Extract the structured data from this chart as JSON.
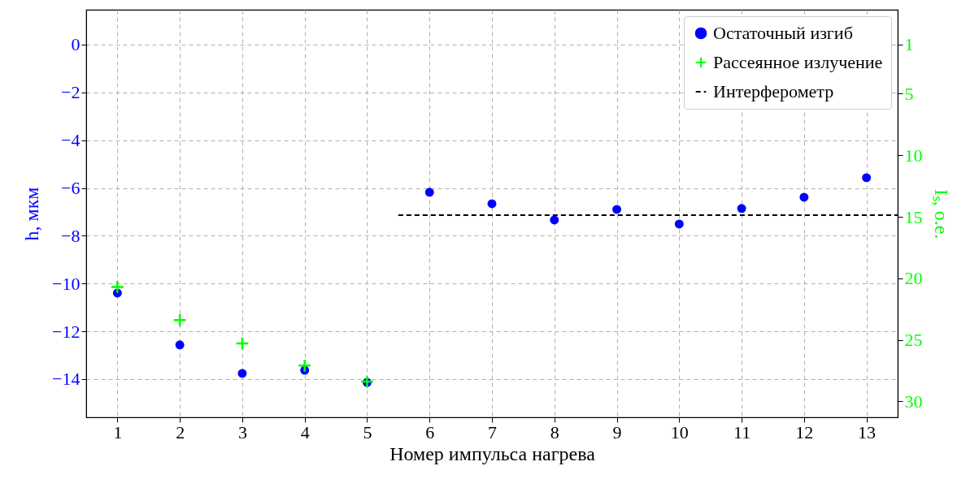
{
  "chart_data": {
    "type": "scatter",
    "xlabel": "Номер импульса нагрева",
    "ylabel": "h, мкм",
    "y2label": "Iₛ, о.е.",
    "xlim": [
      0.5,
      13.5
    ],
    "xticks": [
      1,
      2,
      3,
      4,
      5,
      6,
      7,
      8,
      9,
      10,
      11,
      12,
      13
    ],
    "ylim": [
      -15.6,
      1.46
    ],
    "yticks": [
      -14,
      -12,
      -10,
      -8,
      -6,
      -4,
      -2,
      0
    ],
    "y2lim": [
      31.3,
      -1.83
    ],
    "y2ticks": [
      1,
      5,
      10,
      15,
      20,
      25,
      30
    ],
    "grid": true,
    "legend": "top right",
    "series": [
      {
        "name": "Остаточный изгиб",
        "color": "#0000ff",
        "marker": "circle",
        "x": [
          1,
          2,
          3,
          4,
          5,
          6,
          7,
          8,
          9,
          10,
          11,
          12,
          13
        ],
        "values": [
          -10.4,
          -12.57,
          -13.76,
          -13.63,
          -14.14,
          -6.18,
          -6.66,
          -7.34,
          -6.9,
          -7.51,
          -6.86,
          -6.39,
          -5.57
        ]
      },
      {
        "name": "Рассеянное излучение",
        "color": "#00ff00",
        "marker": "cross",
        "axis": "y2",
        "x": [
          1,
          2,
          3,
          4,
          5
        ],
        "values": [
          20.7,
          23.4,
          25.3,
          27.1,
          28.4
        ]
      },
      {
        "name": "Интерферометр",
        "type": "line",
        "color": "#000000",
        "line_style": "dashed",
        "x": [
          5.5,
          13.5
        ],
        "values": [
          -7.14,
          -7.14
        ]
      }
    ]
  }
}
